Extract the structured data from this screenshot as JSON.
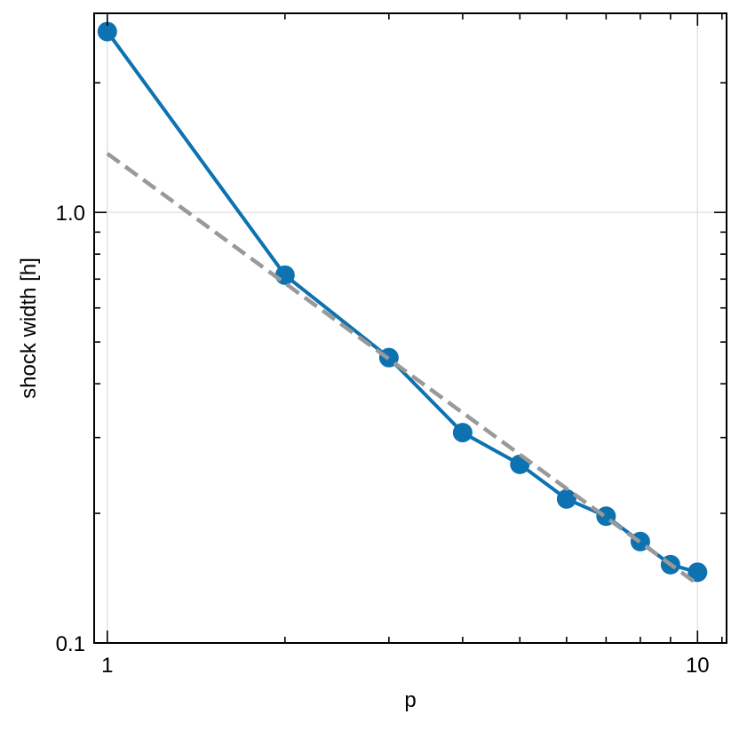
{
  "chart_data": {
    "type": "line",
    "xscale": "log",
    "yscale": "log",
    "xlabel": "p",
    "ylabel": "shock width [h]",
    "xlim": [
      0.95,
      11.2
    ],
    "ylim": [
      0.1,
      2.9
    ],
    "xticks": [
      {
        "value": 1,
        "label": "1"
      },
      {
        "value": 10,
        "label": "10"
      }
    ],
    "yticks": [
      {
        "value": 0.1,
        "label": "0.1"
      },
      {
        "value": 1.0,
        "label": "1.0"
      }
    ],
    "grid": true,
    "series": [
      {
        "color": "#0C72B0",
        "style": "line-markers",
        "x": [
          1,
          2,
          3,
          4,
          5,
          6,
          7,
          8,
          9,
          10
        ],
        "y": [
          2.63,
          0.715,
          0.46,
          0.308,
          0.26,
          0.216,
          0.197,
          0.172,
          0.152,
          0.146
        ]
      },
      {
        "color": "#999999",
        "style": "dashed",
        "x": [
          1,
          10
        ],
        "y": [
          1.37,
          0.137
        ]
      }
    ]
  }
}
